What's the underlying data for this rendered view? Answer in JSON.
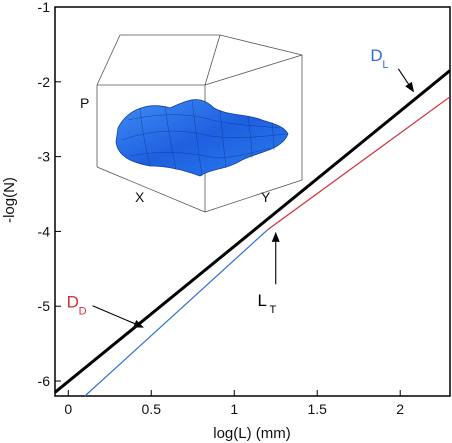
{
  "chart_data": {
    "type": "line",
    "xlabel": "log(L) (mm)",
    "ylabel": "-log(N)",
    "xlim": [
      -0.08,
      2.3
    ],
    "ylim": [
      -6.2,
      -1
    ],
    "xticks": [
      0,
      0.5,
      1,
      1.5,
      2
    ],
    "xtick_labels": [
      "0",
      "0.5",
      "1",
      "1.5",
      "2"
    ],
    "yticks": [
      -1,
      -2,
      -3,
      -4,
      -5,
      -6
    ],
    "ytick_labels": [
      "-1",
      "-2",
      "-3",
      "-4",
      "-5",
      "-6"
    ],
    "grid": false,
    "series": [
      {
        "color": "#000000",
        "width": 3,
        "x": [
          -0.08,
          2.3
        ],
        "y": [
          -6.15,
          -1.85
        ]
      },
      {
        "color": "#d0303a",
        "width": 1.2,
        "x": [
          1.2,
          2.3
        ],
        "y": [
          -3.98,
          -2.2
        ]
      },
      {
        "color": "#2f6fd6",
        "width": 1.2,
        "x": [
          0.1,
          1.2
        ],
        "y": [
          -6.2,
          -3.98
        ]
      }
    ],
    "annotations": [
      {
        "key": "dl",
        "main": "D",
        "sub": "L",
        "color": "#2f6fd6",
        "x": 1.82,
        "y": -1.72,
        "arrow_to": [
          2.08,
          -2.13
        ]
      },
      {
        "key": "dd",
        "main": "D",
        "sub": "D",
        "color": "#d0303a",
        "x": -0.01,
        "y": -5.02,
        "arrow_to": [
          0.45,
          -5.28
        ]
      },
      {
        "key": "lt",
        "main": "L",
        "sub": "T",
        "color": "#000000",
        "x": 1.14,
        "y": -5.0,
        "arrow_to": [
          1.25,
          -4.02
        ]
      }
    ],
    "inset": {
      "axis_labels": {
        "p": "P",
        "x": "X",
        "y": "Y"
      }
    }
  }
}
